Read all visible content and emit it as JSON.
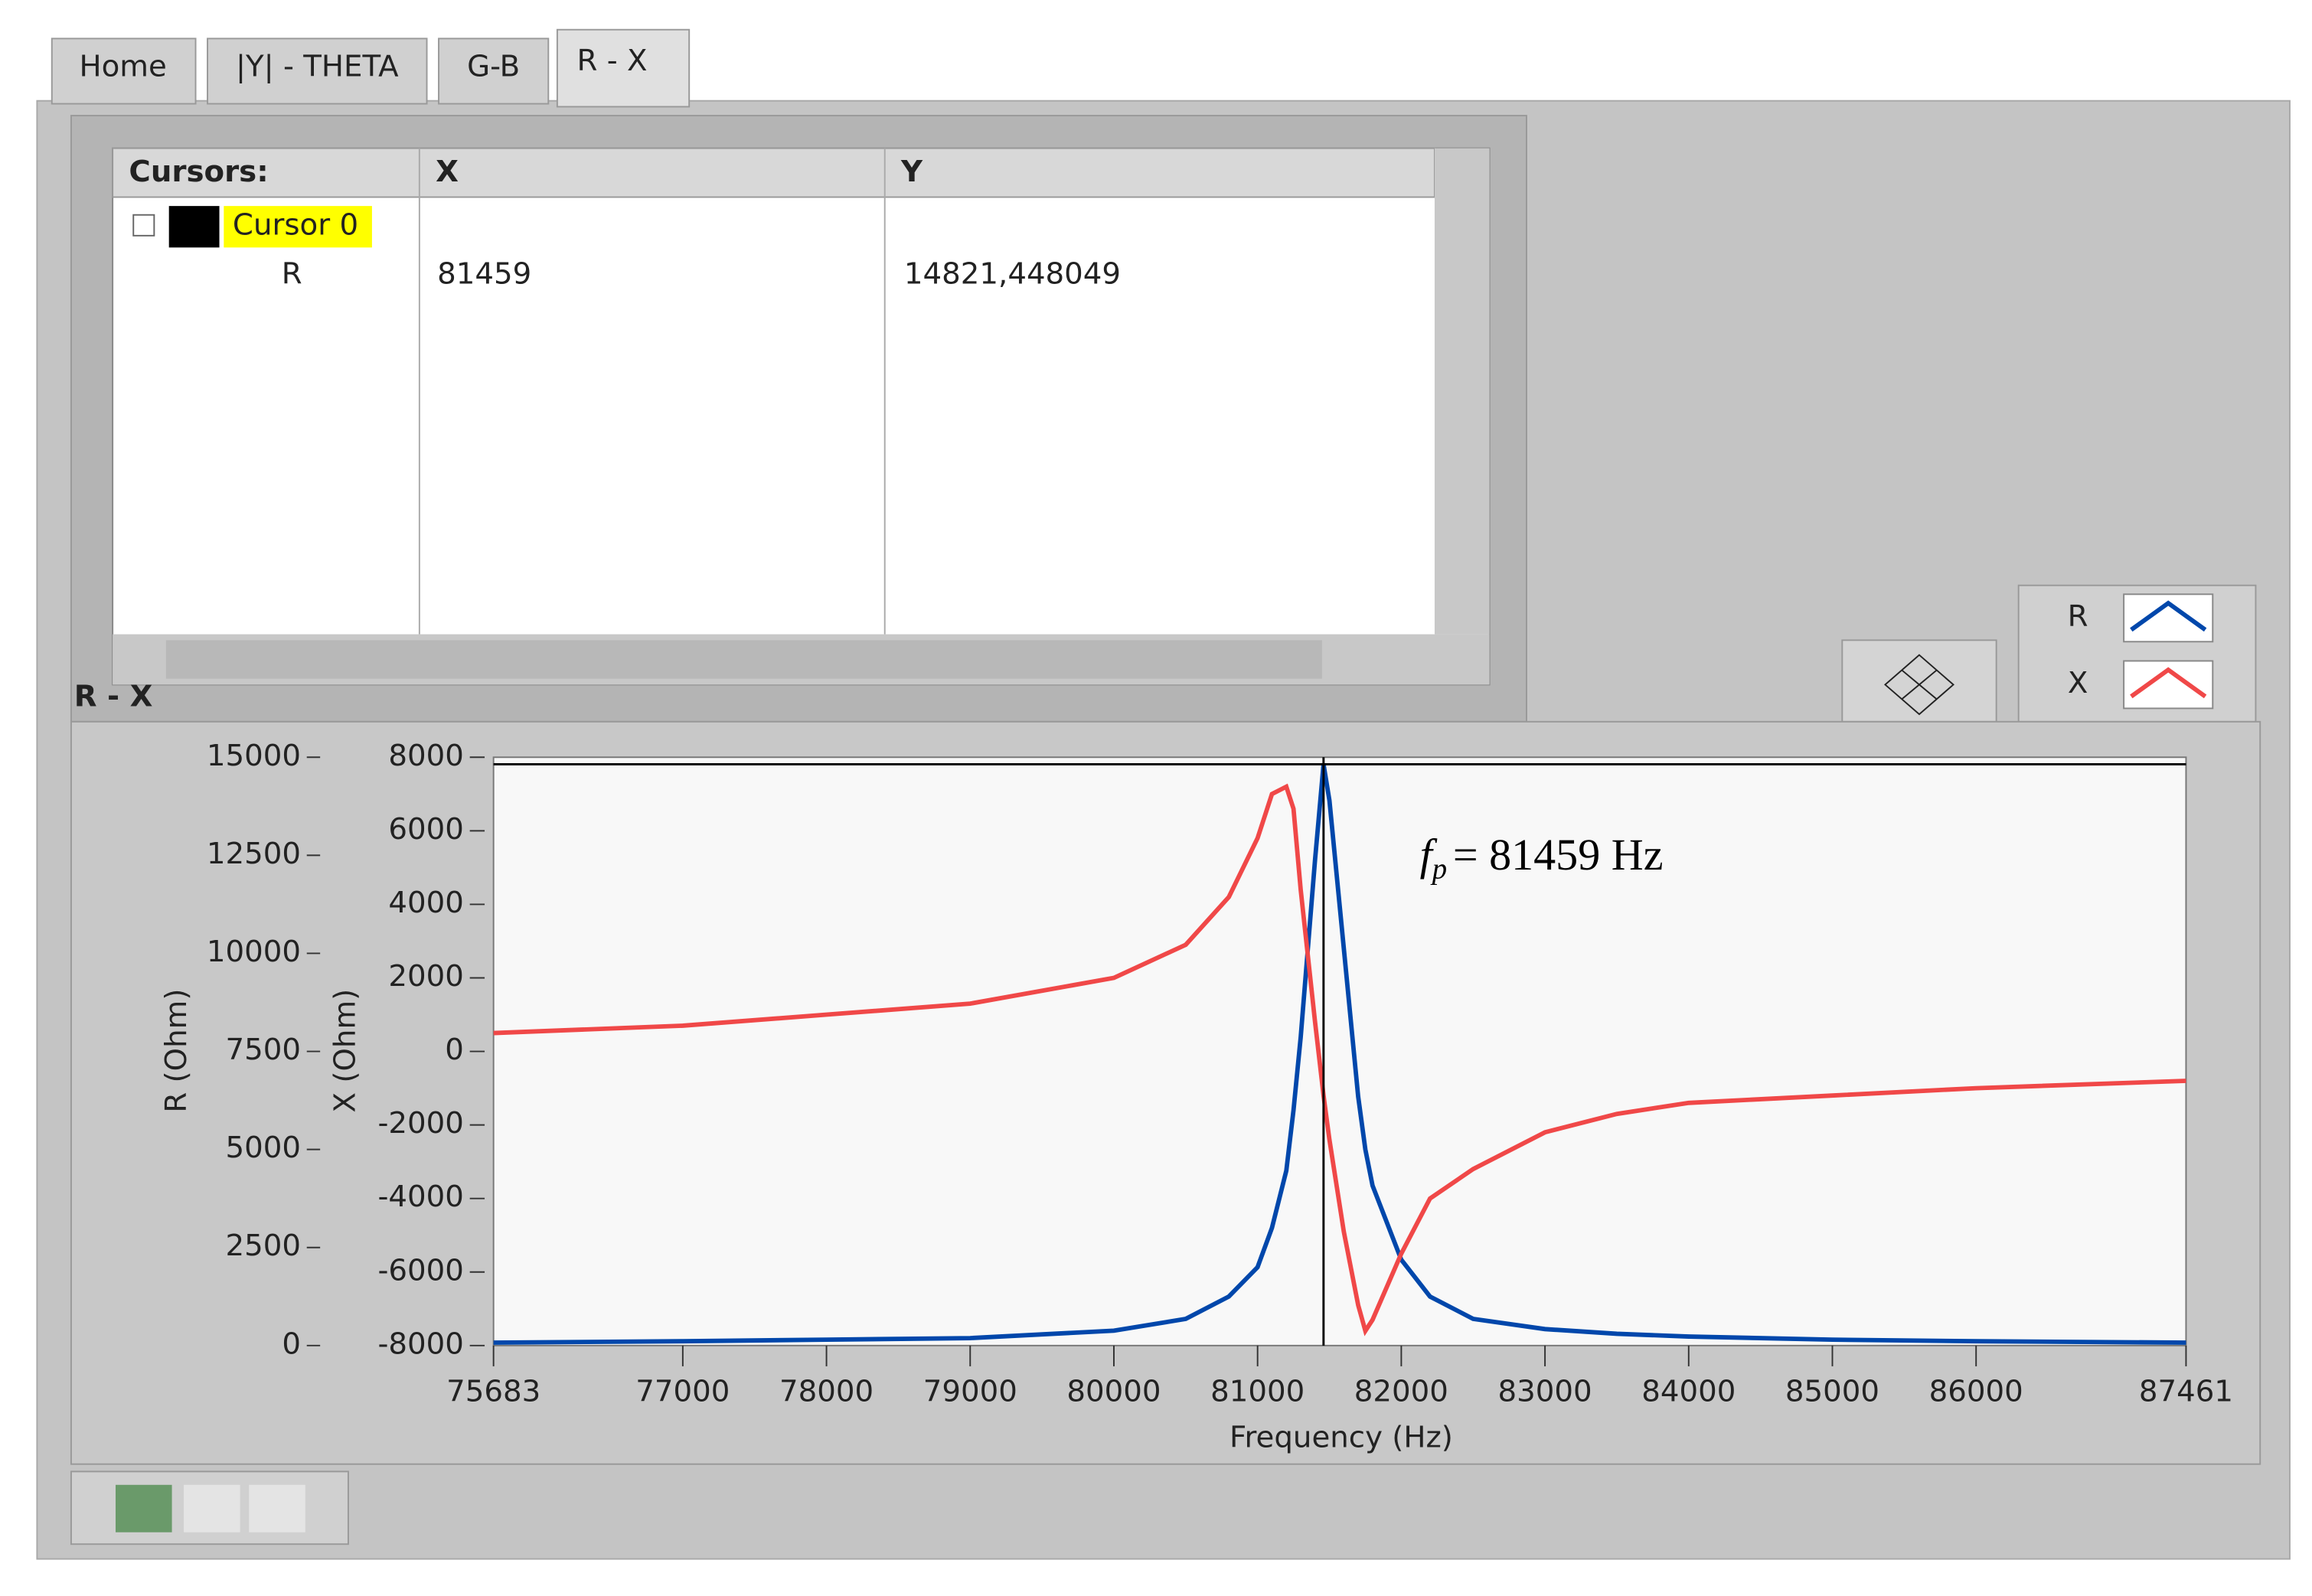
{
  "tabs": [
    "Home",
    "|Y| - THETA",
    "G-B",
    "R - X"
  ],
  "cursor_table": {
    "headers": [
      "Cursors:",
      "X",
      "Y"
    ],
    "cursor_name": "Cursor 0",
    "row": {
      "label": "R",
      "x": "81459",
      "y": "14821,448049"
    }
  },
  "graph_label": "R - X",
  "chart_data": {
    "type": "line",
    "annotation_symbol": "f",
    "annotation_subscript": "p",
    "annotation_text": "= 81459 Hz",
    "xlabel": "Frequency (Hz)",
    "ylabel": "R (Ohm)",
    "y2label": "X (Ohm)",
    "x": [
      75683,
      77000,
      78000,
      79000,
      80000,
      80500,
      80800,
      81000,
      81100,
      81200,
      81250,
      81300,
      81400,
      81459,
      81500,
      81600,
      81700,
      81750,
      81800,
      82000,
      82200,
      82500,
      83000,
      83500,
      84000,
      85000,
      86000,
      87461
    ],
    "series": [
      {
        "name": "R",
        "color": "#0047ab",
        "values": [
          75,
          110,
          150,
          190,
          380,
          680,
          1250,
          2000,
          3000,
          4460,
          6000,
          7860,
          12390,
          14821,
          13900,
          10130,
          6350,
          5000,
          4080,
          2190,
          1250,
          680,
          420,
          300,
          230,
          150,
          110,
          75
        ]
      },
      {
        "name": "X",
        "color": "#f04848",
        "axis": "y2",
        "values": [
          500,
          700,
          1000,
          1300,
          2000,
          2900,
          4200,
          5800,
          7000,
          7200,
          6600,
          4400,
          800,
          -1200,
          -2400,
          -4900,
          -6900,
          -7600,
          -7300,
          -5500,
          -4000,
          -3200,
          -2200,
          -1700,
          -1400,
          -1200,
          -1000,
          -800
        ]
      }
    ],
    "xlim": [
      75683,
      87461
    ],
    "xticks": [
      75683,
      77000,
      78000,
      79000,
      80000,
      81000,
      82000,
      83000,
      84000,
      85000,
      86000,
      87461
    ],
    "ylim": [
      0,
      15000
    ],
    "yticks": [
      0,
      2500,
      5000,
      7500,
      10000,
      12500,
      15000
    ],
    "y2lim": [
      -8000,
      8000
    ],
    "y2ticks": [
      -8000,
      -6000,
      -4000,
      -2000,
      0,
      2000,
      4000,
      6000,
      8000
    ]
  }
}
